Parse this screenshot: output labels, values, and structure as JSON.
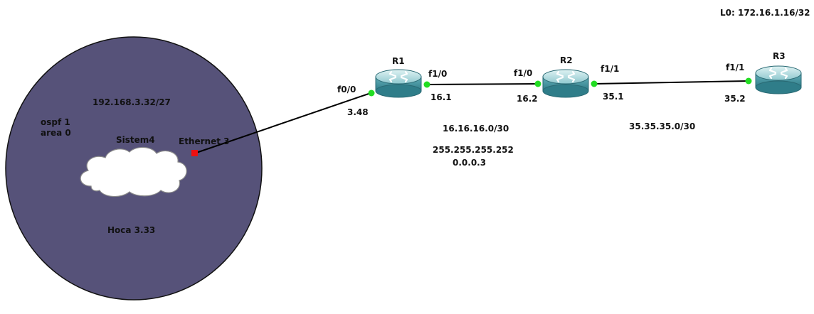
{
  "colors": {
    "area_fill": "#565279",
    "area_stroke": "#111111",
    "link": "#000000",
    "port_up": "#22dd22",
    "port_down": "#ee1111",
    "router_top": "#bfe3e6",
    "router_body": "#4d9aa6",
    "cloud": "#ffffff"
  },
  "area": {
    "network": "192.168.3.32/27",
    "ospf": "ospf 1",
    "area": "area 0",
    "cloud_label": "Sistem4",
    "cloud_port": "Ethernet 3",
    "host": "Hoca 3.33"
  },
  "routers": {
    "r1": {
      "name": "R1"
    },
    "r2": {
      "name": "R2"
    },
    "r3": {
      "name": "R3"
    }
  },
  "interfaces": {
    "r1_f0_0": "f0/0",
    "r1_f0_0_addr": "3.48",
    "r1_f1_0": "f1/0",
    "r1_f1_0_addr": "16.1",
    "r2_f1_0": "f1/0",
    "r2_f1_0_addr": "16.2",
    "r2_f1_1": "f1/1",
    "r2_f1_1_addr": "35.1",
    "r3_f1_1": "f1/1",
    "r3_f1_1_addr": "35.2"
  },
  "links": {
    "r1_r2_network": "16.16.16.0/30",
    "r1_r2_mask": "255.255.255.252",
    "r1_r2_wildcard": "0.0.0.3",
    "r2_r3_network": "35.35.35.0/30"
  },
  "loopback": "L0: 172.16.1.16/32"
}
